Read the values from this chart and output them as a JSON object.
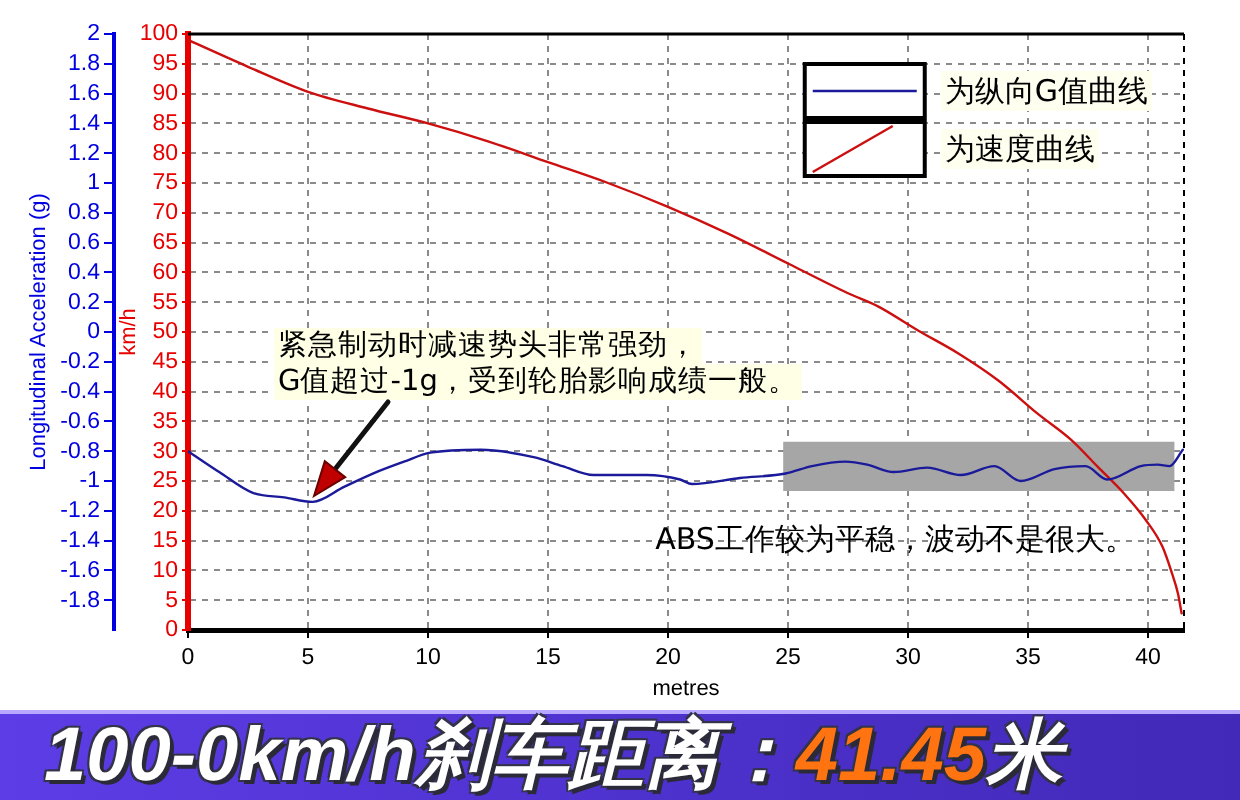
{
  "chart_data": {
    "type": "line",
    "title": "100-0km/h刹车距离：41.45米",
    "xlabel": "metres",
    "ylabel": "Longitudinal Acceleration (g)",
    "y2label": "km/h",
    "annotations": [
      "紧急制动时减速势头非常强劲，\nG值超过-1g，受到轮胎影响成绩一般。"
    ],
    "bands": [
      {
        "axis": "x",
        "from": 24.8,
        "to": 41.1,
        "label": "ABS工作较为平稳，波动不是很大。",
        "color": "#a6a6a6"
      }
    ],
    "series": [
      {
        "name": "为纵向G值曲线",
        "color": "#1a1a9a",
        "x": [
          0,
          1.3,
          2.7,
          4.0,
          5.2,
          6.5,
          7.7,
          9.0,
          10.1,
          12.2,
          14.4,
          15.6,
          16.9,
          19.1,
          20.5,
          21.0,
          23.0,
          24.9,
          26.0,
          27.4,
          28.3,
          29.4,
          30.8,
          32.2,
          33.6,
          34.7,
          36.1,
          37.4,
          38.3,
          39.7,
          40.4,
          40.9,
          41.45
        ],
        "values": [
          -0.8,
          -0.94,
          -1.08,
          -1.11,
          -1.14,
          -1.04,
          -0.95,
          -0.87,
          -0.81,
          -0.79,
          -0.84,
          -0.9,
          -0.96,
          -0.96,
          -0.99,
          -1.02,
          -0.98,
          -0.95,
          -0.9,
          -0.87,
          -0.89,
          -0.94,
          -0.91,
          -0.96,
          -0.9,
          -1.0,
          -0.92,
          -0.9,
          -0.99,
          -0.9,
          -0.89,
          -0.9,
          -0.79
        ]
      },
      {
        "name": "为速度曲线",
        "color": "#cc1010",
        "axis": "y2",
        "x": [
          0,
          2.5,
          5,
          7.5,
          10,
          12.5,
          15,
          17.5,
          20,
          22.5,
          25,
          27.5,
          28.75,
          30.4,
          32.1,
          33.75,
          35.4,
          36.8,
          37.9,
          39.0,
          39.9,
          40.6,
          41.0,
          41.25,
          41.4
        ],
        "values": [
          99,
          94.5,
          90.3,
          87.5,
          85,
          82,
          78.5,
          75,
          71,
          66.5,
          61.5,
          56.5,
          54.3,
          50.3,
          46.4,
          41.9,
          36.3,
          31.9,
          27.4,
          22.9,
          18.5,
          14,
          9.5,
          6.1,
          2.8
        ]
      }
    ],
    "xlim": [
      0,
      41.5
    ],
    "xticks": [
      0,
      5,
      10,
      15,
      20,
      25,
      30,
      35,
      40
    ],
    "ylim": [
      -2,
      2
    ],
    "yticks": [
      -1.8,
      -1.6,
      -1.4,
      -1.2,
      -1,
      -0.8,
      -0.6,
      -0.4,
      -0.2,
      0,
      0.2,
      0.4,
      0.6,
      0.8,
      1,
      1.2,
      1.4,
      1.6,
      1.8,
      2
    ],
    "y2lim": [
      0,
      100
    ],
    "y2ticks": [
      0,
      5,
      10,
      15,
      20,
      25,
      30,
      35,
      40,
      45,
      50,
      55,
      60,
      65,
      70,
      75,
      80,
      85,
      90,
      95,
      100
    ],
    "grid": true,
    "legend": "top right",
    "line_style": "solid"
  }
}
